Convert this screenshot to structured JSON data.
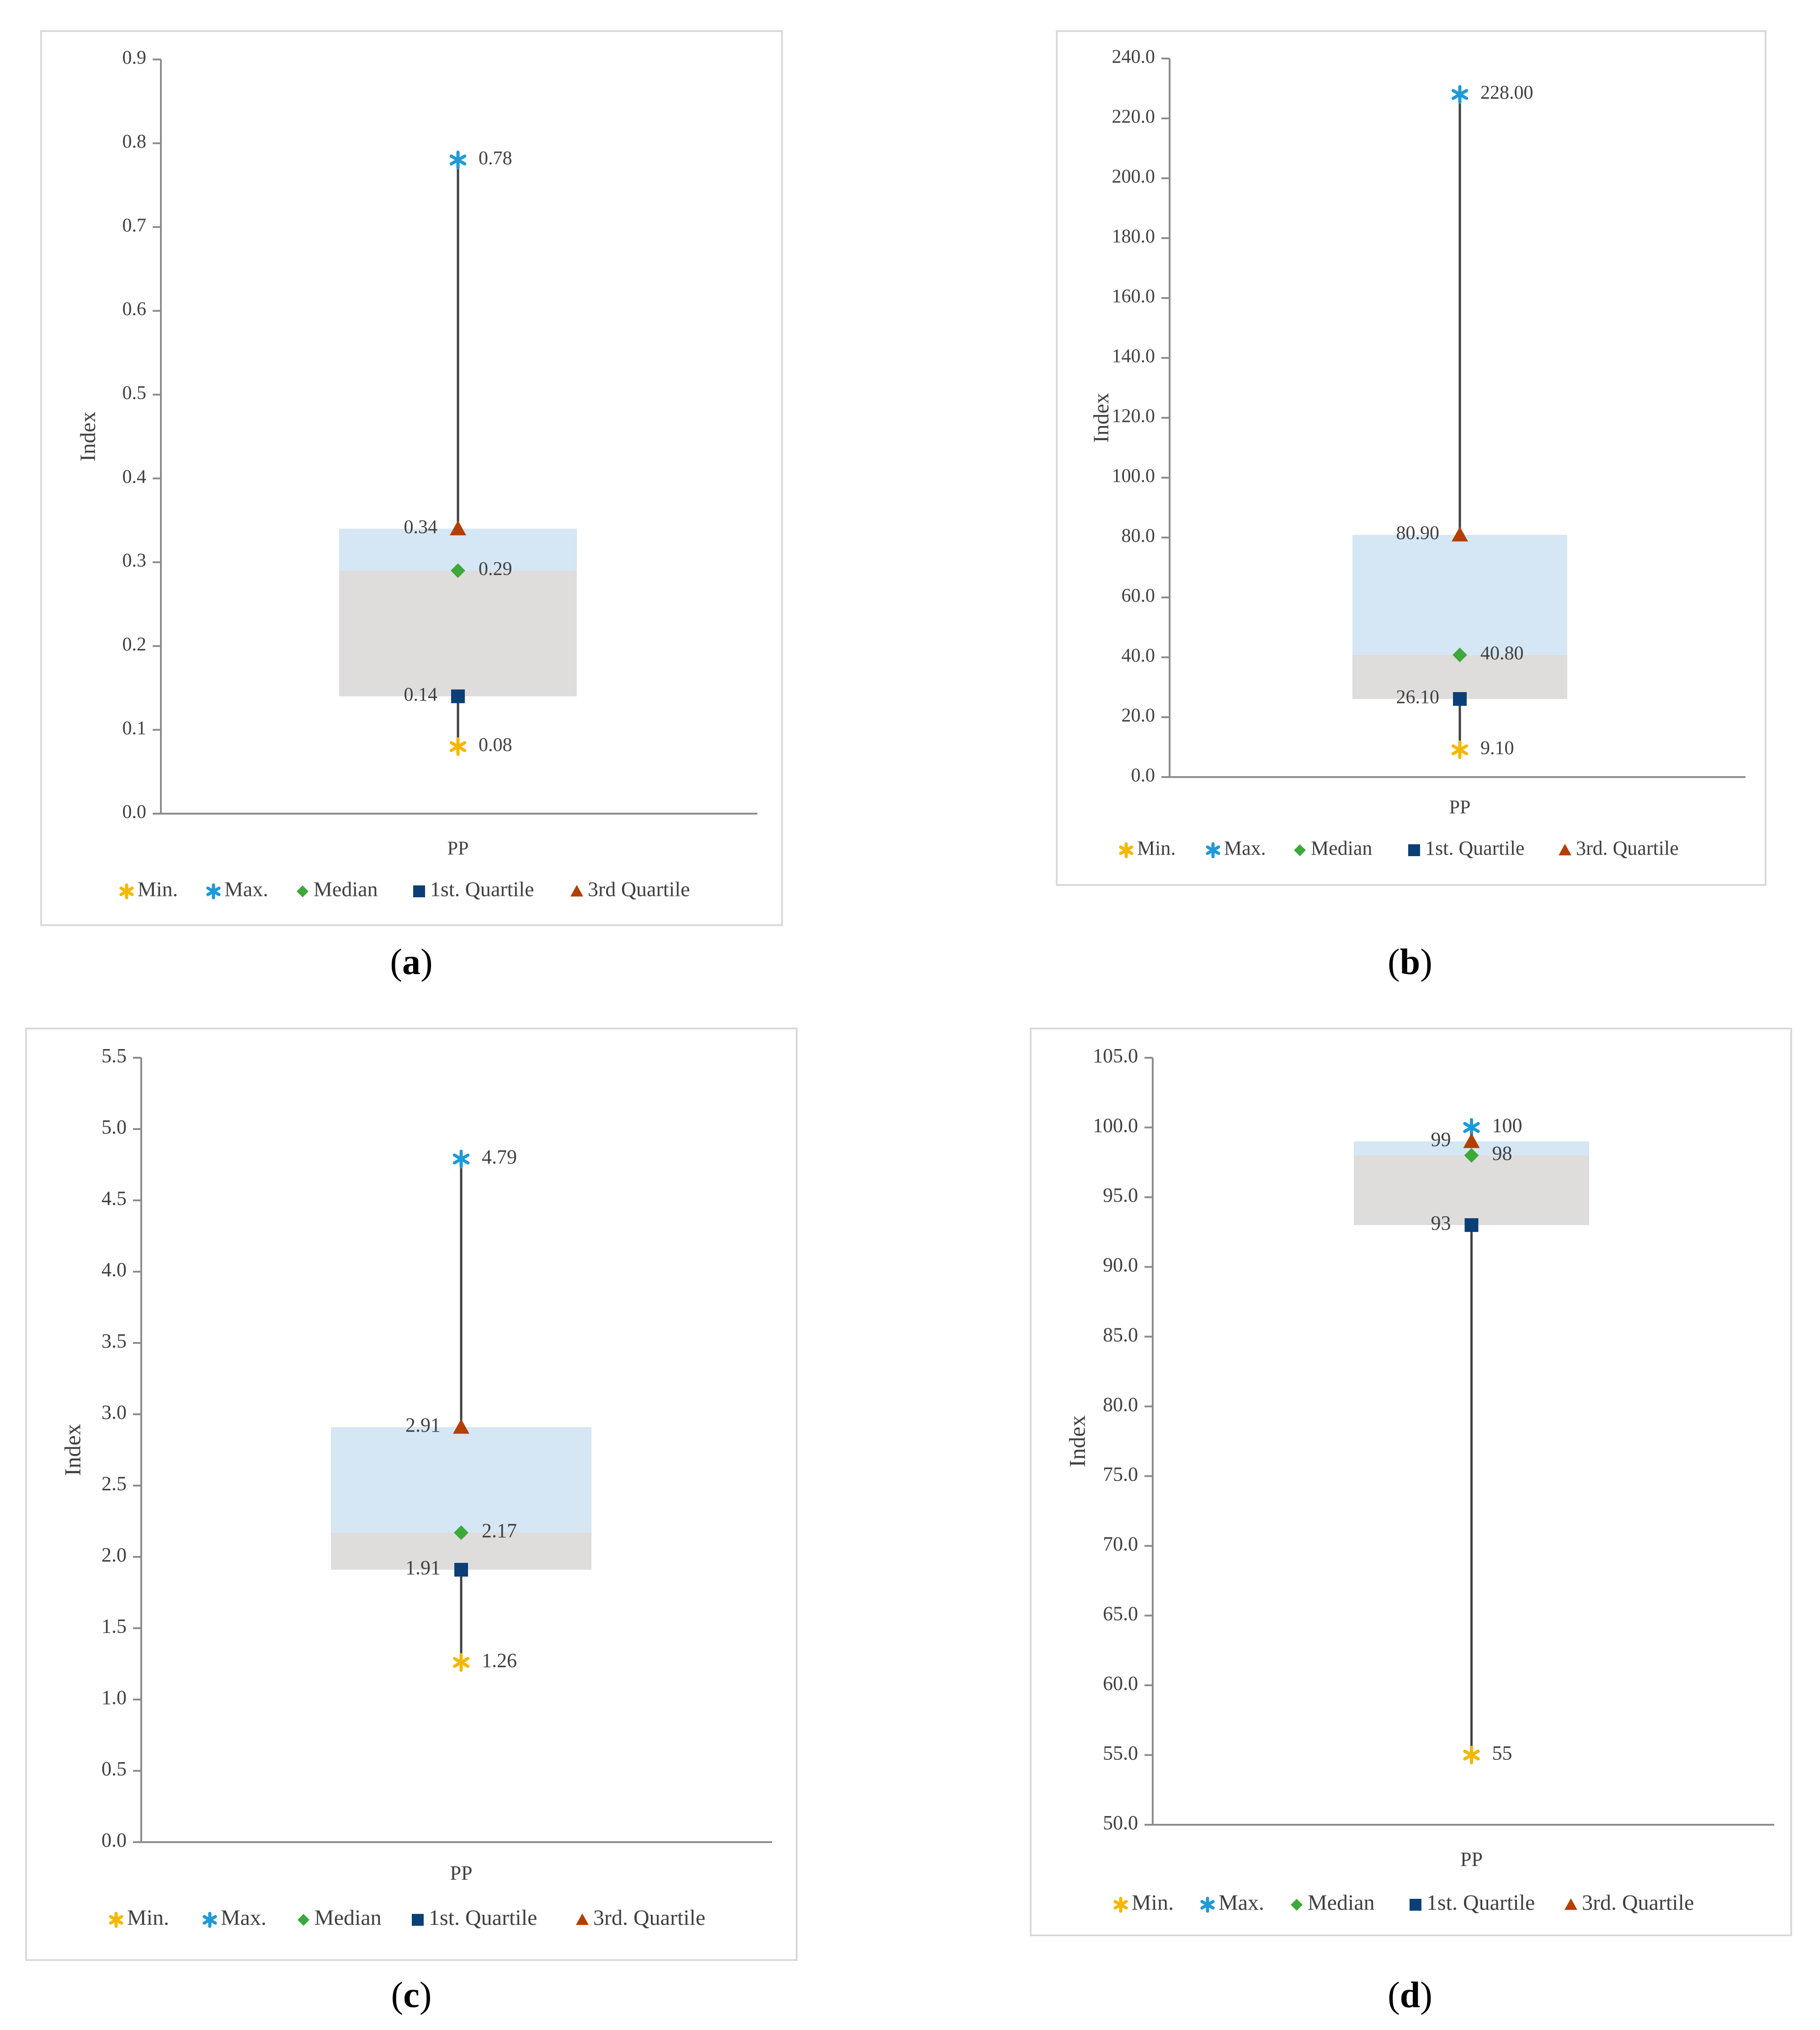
{
  "legend_colors": {
    "min": "#f5b800",
    "max": "#1f9ad6",
    "median": "#3ea83a",
    "q1": "#0b3f78",
    "q3": "#b33f00",
    "upper_box": "#d5e6f4",
    "lower_box": "#dfdcdc",
    "whisker": "#404040",
    "axis": "#8c8c8c"
  },
  "chart_data": [
    {
      "id": "a",
      "type": "box",
      "caption": "a",
      "ylabel": "Index",
      "category": "PP",
      "ylim": [
        0,
        0.9
      ],
      "tick_step": 0.1,
      "tick_labels": [
        "0.0",
        "0.1",
        "0.2",
        "0.3",
        "0.4",
        "0.5",
        "0.6",
        "0.7",
        "0.8",
        "0.9"
      ],
      "stats": {
        "min": 0.08,
        "q1": 0.14,
        "median": 0.29,
        "q3": 0.34,
        "max": 0.78
      },
      "labels": {
        "min": "0.08",
        "q1": "0.14",
        "median": "0.29",
        "q3": "0.34",
        "max": "0.78"
      },
      "legend": [
        "Min.",
        "Max.",
        "Median",
        "1st. Quartile",
        "3rd Quartile"
      ]
    },
    {
      "id": "b",
      "type": "box",
      "caption": "b",
      "ylabel": "Index",
      "category": "PP",
      "ylim": [
        0,
        240
      ],
      "tick_step": 20,
      "tick_labels": [
        "0.0",
        "20.0",
        "40.0",
        "60.0",
        "80.0",
        "100.0",
        "120.0",
        "140.0",
        "160.0",
        "180.0",
        "200.0",
        "220.0",
        "240.0"
      ],
      "stats": {
        "min": 9.1,
        "q1": 26.1,
        "median": 40.8,
        "q3": 80.9,
        "max": 228.0
      },
      "labels": {
        "min": "9.10",
        "q1": "26.10",
        "median": "40.80",
        "q3": "80.90",
        "max": "228.00"
      },
      "legend": [
        "Min.",
        "Max.",
        "Median",
        "1st. Quartile",
        "3rd. Quartile"
      ]
    },
    {
      "id": "c",
      "type": "box",
      "caption": "c",
      "ylabel": "Index",
      "category": "PP",
      "ylim": [
        0,
        5.5
      ],
      "tick_step": 0.5,
      "tick_labels": [
        "0.0",
        "0.5",
        "1.0",
        "1.5",
        "2.0",
        "2.5",
        "3.0",
        "3.5",
        "4.0",
        "4.5",
        "5.0",
        "5.5"
      ],
      "stats": {
        "min": 1.26,
        "q1": 1.91,
        "median": 2.17,
        "q3": 2.91,
        "max": 4.79
      },
      "labels": {
        "min": "1.26",
        "q1": "1.91",
        "median": "2.17",
        "q3": "2.91",
        "max": "4.79"
      },
      "legend": [
        "Min.",
        "Max.",
        "Median",
        "1st. Quartile",
        "3rd. Quartile"
      ]
    },
    {
      "id": "d",
      "type": "box",
      "caption": "d",
      "ylabel": "Index",
      "category": "PP",
      "ylim": [
        50,
        105
      ],
      "tick_step": 5,
      "tick_labels": [
        "50.0",
        "55.0",
        "60.0",
        "65.0",
        "70.0",
        "75.0",
        "80.0",
        "85.0",
        "90.0",
        "95.0",
        "100.0",
        "105.0"
      ],
      "stats": {
        "min": 55,
        "q1": 93,
        "median": 98,
        "q3": 99,
        "max": 100
      },
      "labels": {
        "min": "55",
        "q1": "93",
        "median": "98",
        "q3": "99",
        "max": "100"
      },
      "legend": [
        "Min.",
        "Max.",
        "Median",
        "1st. Quartile",
        "3rd. Quartile"
      ]
    }
  ]
}
